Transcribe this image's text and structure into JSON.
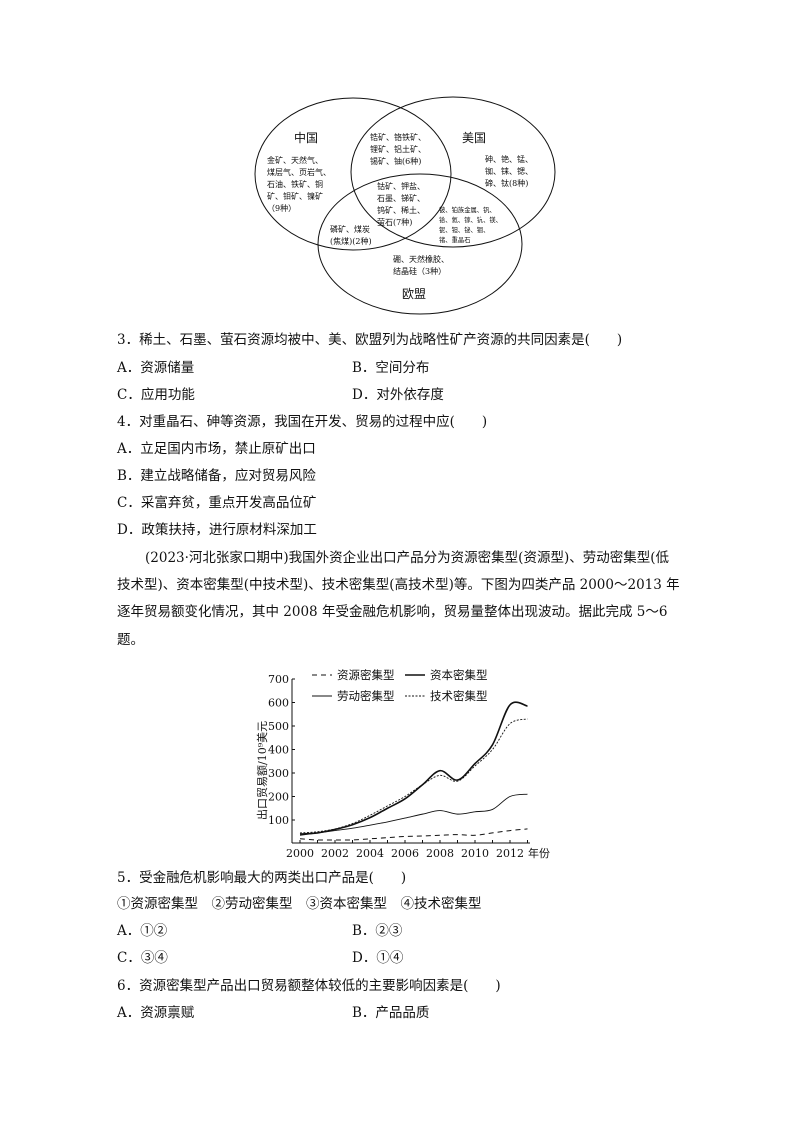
{
  "venn": {
    "sets": [
      "中国",
      "美国",
      "欧盟"
    ],
    "china_only": [
      "金矿、天然气、",
      "煤层气、页岩气、",
      "石油、铁矿、铜",
      "矿、钼矿、镍矿",
      "（9种）"
    ],
    "china_us": [
      "锆矿、铬铁矿、",
      "锂矿、铝土矿、",
      "锡矿、铀(6种)"
    ],
    "us_only": [
      "砷、铯、锰、",
      "铷、铼、锶、",
      "碲、钛(8种)"
    ],
    "all_three": [
      "钴矿、钾盐、",
      "石墨、锑矿、",
      "钨矿、稀土、",
      "萤石(7种)"
    ],
    "china_eu": [
      "磷矿、煤炭",
      "(焦煤)(2种)"
    ],
    "us_eu": [
      "铍、铂族金属、钒、",
      "铪、氦、镓、钪、镁、",
      "铌、钽、铋、铟、",
      "锗、重晶石"
    ],
    "eu_only": [
      "硼、天然橡胶、",
      "结晶硅（3种）"
    ]
  },
  "q3": {
    "stem": "3．稀土、石墨、萤石资源均被中、美、欧盟列为战略性矿产资源的共同因素是(　　)",
    "a": "A．资源储量",
    "b": "B．空间分布",
    "c": "C．应用功能",
    "d": "D．对外依存度"
  },
  "q4": {
    "stem": "4．对重晶石、砷等资源，我国在开发、贸易的过程中应(　　)",
    "a": "A．立足国内市场，禁止原矿出口",
    "b": "B．建立战略储备，应对贸易风险",
    "c": "C．采富弃贫，重点开发高品位矿",
    "d": "D．政策扶持，进行原材料深加工"
  },
  "intro": [
    "(2023·河北张家口期中)我国外资企业出口产品分为资源密集型(资源型)、劳动密集型(低",
    "技术型)、资本密集型(中技术型)、技术密集型(高技术型)等。下图为四类产品 2000～2013 年",
    "逐年贸易额变化情况，其中 2008 年受金融危机影响，贸易量整体出现波动。据此完成 5～6",
    "题。"
  ],
  "chart_data": {
    "type": "line",
    "ylabel": "出口贸易额/10⁹美元",
    "xlabel": "年份",
    "x": [
      2000,
      2001,
      2002,
      2003,
      2004,
      2005,
      2006,
      2007,
      2008,
      2009,
      2010,
      2011,
      2012,
      2013
    ],
    "xticks": [
      "2000",
      "2002",
      "2004",
      "2006",
      "2008",
      "2010",
      "2012"
    ],
    "yticks": [
      "100",
      "200",
      "300",
      "400",
      "500",
      "600",
      "700"
    ],
    "ylim": [
      0,
      700
    ],
    "legend": "top-left, inside",
    "series": [
      {
        "name": "资源密集型",
        "style": "dashed",
        "values": [
          20,
          15,
          15,
          15,
          20,
          25,
          30,
          32,
          35,
          38,
          35,
          45,
          55,
          62
        ]
      },
      {
        "name": "资本密集型",
        "style": "solid-thick",
        "values": [
          40,
          45,
          60,
          80,
          110,
          150,
          190,
          250,
          310,
          270,
          340,
          420,
          590,
          585
        ]
      },
      {
        "name": "劳动密集型",
        "style": "solid-thin",
        "values": [
          35,
          45,
          55,
          65,
          78,
          92,
          108,
          125,
          140,
          125,
          135,
          145,
          200,
          210
        ]
      },
      {
        "name": "技术密集型",
        "style": "dotted",
        "values": [
          45,
          50,
          62,
          85,
          120,
          160,
          200,
          250,
          290,
          265,
          330,
          400,
          510,
          530
        ]
      }
    ]
  },
  "q5": {
    "stem": "5．受金融危机影响最大的两类出口产品是(　　)",
    "options": "①资源密集型　②劳动密集型　③资本密集型　④技术密集型",
    "a": "A．①②",
    "b": "B．②③",
    "c": "C．③④",
    "d": "D．①④"
  },
  "q6": {
    "stem": "6．资源密集型产品出口贸易额整体较低的主要影响因素是(　　)",
    "a": "A．资源禀赋",
    "b": "B．产品品质"
  }
}
